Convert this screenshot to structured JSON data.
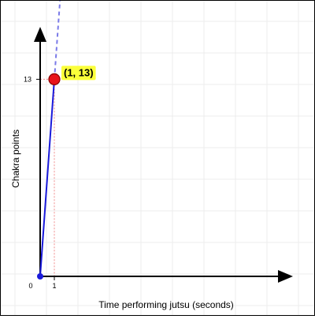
{
  "chart_data": {
    "type": "line",
    "title": "",
    "xlabel": "Time performing jutsu (seconds)",
    "ylabel": "Chakra points",
    "x_ticks": [
      0,
      1
    ],
    "y_ticks": [
      13
    ],
    "origin_label": "0",
    "xlim": [
      0,
      17
    ],
    "ylim": [
      0,
      15.5
    ],
    "grid": true,
    "series": [
      {
        "x": [
          0,
          1
        ],
        "y": [
          0,
          13
        ],
        "color": "#1a1adb",
        "extension": "dashed"
      }
    ],
    "highlight_point": {
      "x": 1,
      "y": 13,
      "label": "(1, 13)",
      "fill": "#e8141b",
      "label_background": "#fbff3a"
    },
    "origin_point": {
      "x": 0,
      "y": 0,
      "fill": "#1a1adb"
    },
    "guide_color": "#f08a8a",
    "grid_color": "#ececec"
  }
}
